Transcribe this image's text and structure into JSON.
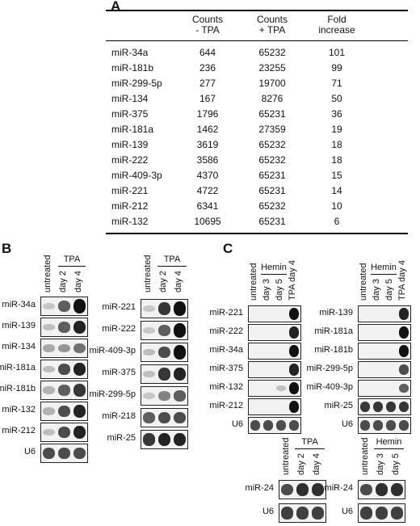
{
  "panels": {
    "a": "A",
    "b": "B",
    "c": "C"
  },
  "table": {
    "headers": {
      "c1": "Counts\n- TPA",
      "c2": "Counts\n+ TPA",
      "c3": "Fold\nincrease"
    },
    "rows": [
      {
        "name": "miR-34a",
        "minus": "644",
        "plus": "65232",
        "fold": "101"
      },
      {
        "name": "miR-181b",
        "minus": "236",
        "plus": "23255",
        "fold": "99"
      },
      {
        "name": "miR-299-5p",
        "minus": "277",
        "plus": "19700",
        "fold": "71"
      },
      {
        "name": "miR-134",
        "minus": "167",
        "plus": "8276",
        "fold": "50"
      },
      {
        "name": "miR-375",
        "minus": "1796",
        "plus": "65231",
        "fold": "36"
      },
      {
        "name": "miR-181a",
        "minus": "1462",
        "plus": "27359",
        "fold": "19"
      },
      {
        "name": "miR-139",
        "minus": "3619",
        "plus": "65232",
        "fold": "18"
      },
      {
        "name": "miR-222",
        "minus": "3586",
        "plus": "65232",
        "fold": "18"
      },
      {
        "name": "miR-409-3p",
        "minus": "4370",
        "plus": "65231",
        "fold": "15"
      },
      {
        "name": "miR-221",
        "minus": "4722",
        "plus": "65231",
        "fold": "14"
      },
      {
        "name": "miR-212",
        "minus": "6341",
        "plus": "65232",
        "fold": "10"
      },
      {
        "name": "miR-132",
        "minus": "10695",
        "plus": "65231",
        "fold": "6"
      }
    ]
  },
  "lanes": {
    "untreated": "untreated",
    "day2": "day 2",
    "day4": "day 4",
    "day3": "day 3",
    "day5": "day 5",
    "tpa_day4": "TPA day 4"
  },
  "groups": {
    "tpa": "TPA",
    "hemin": "Hemin"
  },
  "blot_b_left": [
    "miR-34a",
    "miR-139",
    "miR-134",
    "miR-181a",
    "miR-181b",
    "miR-132",
    "miR-212",
    "U6"
  ],
  "blot_b_right": [
    "miR-221",
    "miR-222",
    "miR-409-3p",
    "miR-375",
    "miR-299-5p",
    "miR-218",
    "miR-25"
  ],
  "blot_c_left": [
    "miR-221",
    "miR-222",
    "miR-34a",
    "miR-375",
    "miR-132",
    "miR-212",
    "U6"
  ],
  "blot_c_right": [
    "miR-139",
    "miR-181a",
    "miR-181b",
    "miR-299-5p",
    "miR-409-3p",
    "miR-25",
    "U6"
  ],
  "blot_bottom_left": [
    "miR-24",
    "U6"
  ],
  "blot_bottom_right": [
    "miR-24",
    "U6"
  ]
}
